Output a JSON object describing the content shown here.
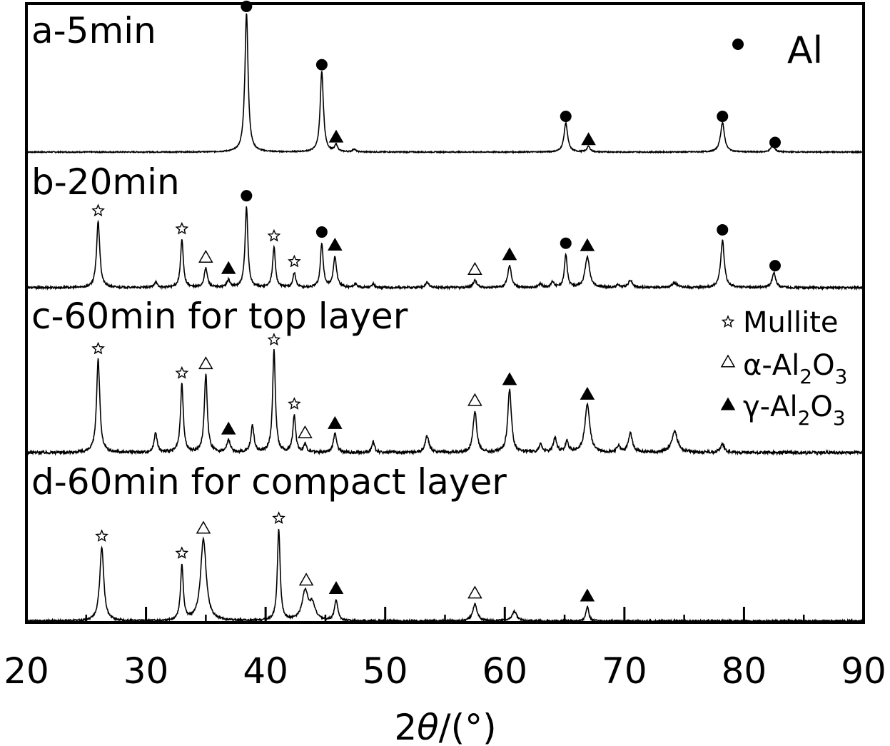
{
  "chart_data": {
    "type": "line",
    "title": "",
    "xlabel": {
      "prefix": "2",
      "symbol": "θ",
      "suffix": "/(°)"
    },
    "ylabel": "",
    "xlim": [
      20,
      90
    ],
    "xticks": [
      20,
      30,
      40,
      50,
      60,
      70,
      80,
      90
    ],
    "xtick_labels": [
      "20",
      "30",
      "40",
      "50",
      "60",
      "70",
      "80",
      "90"
    ],
    "grid": false,
    "legend_position": "right",
    "legend": [
      {
        "marker": "circle",
        "label": "Al"
      },
      {
        "marker": "star",
        "label": "Mullite"
      },
      {
        "marker": "triangle-open",
        "label": "α-Al",
        "sub1": "2",
        "mid": "O",
        "sub2": "3"
      },
      {
        "marker": "triangle-filled",
        "label": "γ-Al",
        "sub1": "2",
        "mid": "O",
        "sub2": "3"
      }
    ],
    "series": [
      {
        "name": "a-5min",
        "peaks": [
          {
            "x": 38.4,
            "h": 1.0,
            "w": 0.16,
            "phase": "Al"
          },
          {
            "x": 44.7,
            "h": 0.58,
            "w": 0.16,
            "phase": "Al"
          },
          {
            "x": 45.9,
            "h": 0.05,
            "w": 0.14,
            "phase": "γ-Al2O3"
          },
          {
            "x": 47.4,
            "h": 0.02,
            "w": 0.14
          },
          {
            "x": 65.1,
            "h": 0.21,
            "w": 0.18,
            "phase": "Al"
          },
          {
            "x": 67.0,
            "h": 0.04,
            "w": 0.16,
            "phase": "γ-Al2O3"
          },
          {
            "x": 78.2,
            "h": 0.21,
            "w": 0.2,
            "phase": "Al"
          },
          {
            "x": 82.4,
            "h": 0.05,
            "w": 0.18,
            "phase": "Al"
          }
        ],
        "noise": 0.004,
        "markers": [
          {
            "x": 38.4,
            "type": "circle"
          },
          {
            "x": 44.7,
            "type": "circle"
          },
          {
            "x": 45.9,
            "type": "triangle-filled"
          },
          {
            "x": 65.1,
            "type": "circle"
          },
          {
            "x": 67.0,
            "type": "triangle-filled"
          },
          {
            "x": 78.2,
            "type": "circle"
          },
          {
            "x": 82.6,
            "type": "circle"
          }
        ]
      },
      {
        "name": "b-20min",
        "peaks": [
          {
            "x": 26.0,
            "h": 0.9,
            "w": 0.16,
            "phase": "Mullite"
          },
          {
            "x": 30.8,
            "h": 0.08,
            "w": 0.14
          },
          {
            "x": 33.0,
            "h": 0.65,
            "w": 0.14,
            "phase": "Mullite"
          },
          {
            "x": 35.0,
            "h": 0.26,
            "w": 0.16,
            "phase": "α-Al2O3"
          },
          {
            "x": 36.9,
            "h": 0.1,
            "w": 0.16,
            "phase": "γ-Al2O3"
          },
          {
            "x": 38.4,
            "h": 1.1,
            "w": 0.14,
            "phase": "Al"
          },
          {
            "x": 40.7,
            "h": 0.55,
            "w": 0.14,
            "phase": "Mullite"
          },
          {
            "x": 42.4,
            "h": 0.2,
            "w": 0.14,
            "phase": "Mullite"
          },
          {
            "x": 44.7,
            "h": 0.6,
            "w": 0.14,
            "phase": "Al"
          },
          {
            "x": 45.8,
            "h": 0.42,
            "w": 0.16,
            "phase": "γ-Al2O3"
          },
          {
            "x": 47.5,
            "h": 0.05,
            "w": 0.14
          },
          {
            "x": 49.0,
            "h": 0.05,
            "w": 0.14
          },
          {
            "x": 53.5,
            "h": 0.07,
            "w": 0.18
          },
          {
            "x": 57.5,
            "h": 0.1,
            "w": 0.18,
            "phase": "α-Al2O3"
          },
          {
            "x": 60.4,
            "h": 0.3,
            "w": 0.18,
            "phase": "γ-Al2O3"
          },
          {
            "x": 63.0,
            "h": 0.05,
            "w": 0.16
          },
          {
            "x": 64.0,
            "h": 0.08,
            "w": 0.16
          },
          {
            "x": 65.1,
            "h": 0.45,
            "w": 0.14,
            "phase": "Al"
          },
          {
            "x": 66.9,
            "h": 0.42,
            "w": 0.22,
            "phase": "γ-Al2O3"
          },
          {
            "x": 69.5,
            "h": 0.04,
            "w": 0.16
          },
          {
            "x": 70.5,
            "h": 0.1,
            "w": 0.2
          },
          {
            "x": 74.2,
            "h": 0.06,
            "w": 0.3
          },
          {
            "x": 78.2,
            "h": 0.64,
            "w": 0.18,
            "phase": "Al"
          },
          {
            "x": 82.5,
            "h": 0.2,
            "w": 0.18,
            "phase": "Al"
          }
        ],
        "noise": 0.014,
        "markers": [
          {
            "x": 26.0,
            "type": "star"
          },
          {
            "x": 33.0,
            "type": "star"
          },
          {
            "x": 35.0,
            "type": "triangle-open"
          },
          {
            "x": 36.9,
            "type": "triangle-filled"
          },
          {
            "x": 38.4,
            "type": "circle"
          },
          {
            "x": 40.7,
            "type": "star"
          },
          {
            "x": 42.4,
            "type": "star"
          },
          {
            "x": 44.7,
            "type": "circle"
          },
          {
            "x": 45.8,
            "type": "triangle-filled"
          },
          {
            "x": 57.5,
            "type": "triangle-open"
          },
          {
            "x": 60.4,
            "type": "triangle-filled"
          },
          {
            "x": 65.1,
            "type": "circle"
          },
          {
            "x": 66.9,
            "type": "triangle-filled"
          },
          {
            "x": 78.2,
            "type": "circle"
          },
          {
            "x": 82.6,
            "type": "circle"
          }
        ]
      },
      {
        "name": "c-60min for top layer",
        "peaks": [
          {
            "x": 26.0,
            "h": 0.9,
            "w": 0.16,
            "phase": "Mullite"
          },
          {
            "x": 30.8,
            "h": 0.2,
            "w": 0.14
          },
          {
            "x": 33.0,
            "h": 0.66,
            "w": 0.14,
            "phase": "Mullite"
          },
          {
            "x": 35.0,
            "h": 0.75,
            "w": 0.15,
            "phase": "α-Al2O3"
          },
          {
            "x": 36.9,
            "h": 0.12,
            "w": 0.16,
            "phase": "γ-Al2O3"
          },
          {
            "x": 38.9,
            "h": 0.25,
            "w": 0.16
          },
          {
            "x": 40.7,
            "h": 0.98,
            "w": 0.14,
            "phase": "Mullite"
          },
          {
            "x": 42.4,
            "h": 0.36,
            "w": 0.14,
            "phase": "Mullite"
          },
          {
            "x": 43.3,
            "h": 0.08,
            "w": 0.14,
            "phase": "α-Al2O3"
          },
          {
            "x": 45.8,
            "h": 0.18,
            "w": 0.16,
            "phase": "γ-Al2O3"
          },
          {
            "x": 49.0,
            "h": 0.1,
            "w": 0.14
          },
          {
            "x": 53.5,
            "h": 0.16,
            "w": 0.18
          },
          {
            "x": 57.5,
            "h": 0.4,
            "w": 0.18,
            "phase": "α-Al2O3"
          },
          {
            "x": 60.4,
            "h": 0.6,
            "w": 0.18,
            "phase": "γ-Al2O3"
          },
          {
            "x": 63.0,
            "h": 0.08,
            "w": 0.16
          },
          {
            "x": 64.2,
            "h": 0.14,
            "w": 0.16
          },
          {
            "x": 65.2,
            "h": 0.1,
            "w": 0.16
          },
          {
            "x": 66.9,
            "h": 0.46,
            "w": 0.24,
            "phase": "γ-Al2O3"
          },
          {
            "x": 69.5,
            "h": 0.06,
            "w": 0.16
          },
          {
            "x": 70.5,
            "h": 0.18,
            "w": 0.2
          },
          {
            "x": 74.2,
            "h": 0.2,
            "w": 0.3
          },
          {
            "x": 78.2,
            "h": 0.08,
            "w": 0.2
          }
        ],
        "noise": 0.014,
        "markers": [
          {
            "x": 26.0,
            "type": "star"
          },
          {
            "x": 33.0,
            "type": "star"
          },
          {
            "x": 35.0,
            "type": "triangle-open"
          },
          {
            "x": 36.9,
            "type": "triangle-filled"
          },
          {
            "x": 40.7,
            "type": "star"
          },
          {
            "x": 42.4,
            "type": "star"
          },
          {
            "x": 43.3,
            "type": "triangle-open"
          },
          {
            "x": 45.8,
            "type": "triangle-filled"
          },
          {
            "x": 57.5,
            "type": "triangle-open"
          },
          {
            "x": 60.4,
            "type": "triangle-filled"
          },
          {
            "x": 66.9,
            "type": "triangle-filled"
          }
        ]
      },
      {
        "name": "d-60min for compact layer",
        "peaks": [
          {
            "x": 26.3,
            "h": 0.78,
            "w": 0.2,
            "phase": "Mullite"
          },
          {
            "x": 33.0,
            "h": 0.58,
            "w": 0.14,
            "phase": "Mullite"
          },
          {
            "x": 34.8,
            "h": 0.86,
            "w": 0.28,
            "phase": "α-Al2O3"
          },
          {
            "x": 41.1,
            "h": 0.96,
            "w": 0.14,
            "phase": "Mullite"
          },
          {
            "x": 43.3,
            "h": 0.3,
            "w": 0.3,
            "phase": "α-Al2O3"
          },
          {
            "x": 43.9,
            "h": 0.16,
            "w": 0.3
          },
          {
            "x": 45.9,
            "h": 0.22,
            "w": 0.16,
            "phase": "γ-Al2O3"
          },
          {
            "x": 57.5,
            "h": 0.18,
            "w": 0.22,
            "phase": "α-Al2O3"
          },
          {
            "x": 60.8,
            "h": 0.1,
            "w": 0.24
          },
          {
            "x": 66.9,
            "h": 0.15,
            "w": 0.14,
            "phase": "γ-Al2O3"
          }
        ],
        "noise": 0.01,
        "markers": [
          {
            "x": 26.3,
            "type": "star"
          },
          {
            "x": 33.0,
            "type": "star"
          },
          {
            "x": 34.8,
            "type": "triangle-open"
          },
          {
            "x": 41.1,
            "type": "star"
          },
          {
            "x": 43.4,
            "type": "triangle-open"
          },
          {
            "x": 45.9,
            "type": "triangle-filled"
          },
          {
            "x": 57.5,
            "type": "triangle-open"
          },
          {
            "x": 66.9,
            "type": "triangle-filled"
          }
        ]
      }
    ]
  }
}
